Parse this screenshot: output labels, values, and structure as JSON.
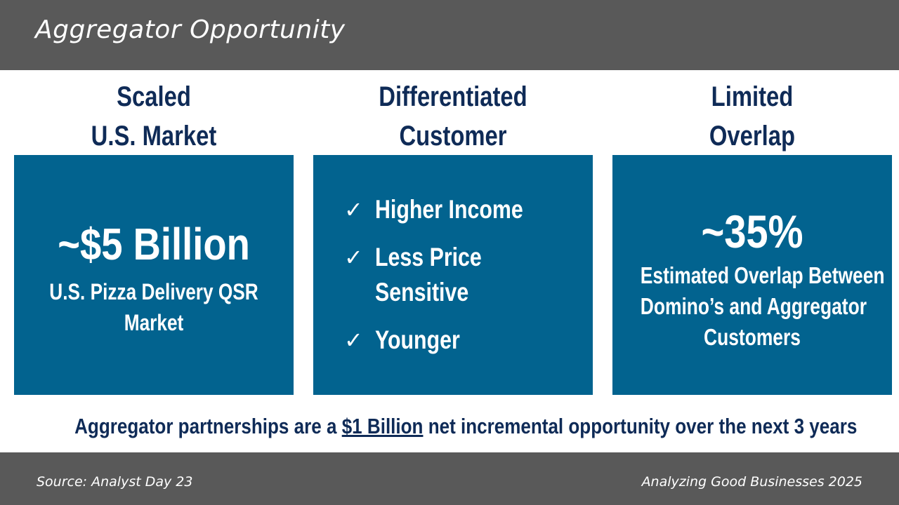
{
  "header": {
    "title": "Aggregator Opportunity"
  },
  "columns": [
    {
      "heading": [
        "Scaled",
        "U.S. Market"
      ],
      "big_value": "~$5 Billion",
      "subtext": [
        "U.S. Pizza Delivery QSR",
        "Market"
      ]
    },
    {
      "heading": [
        "Differentiated",
        "Customer"
      ],
      "items": [
        {
          "lines": [
            "Higher Income"
          ]
        },
        {
          "lines": [
            "Less Price",
            "Sensitive"
          ]
        },
        {
          "lines": [
            "Younger"
          ]
        }
      ],
      "check_glyph": "✓"
    },
    {
      "heading": [
        "Limited",
        "Overlap"
      ],
      "big_value": "~35%",
      "subtext": [
        "Estimated Overlap Between",
        "Domino’s and Aggregator",
        "Customers"
      ]
    }
  ],
  "bottom": {
    "prefix": "Aggregator partnerships are a ",
    "highlight": "$1 Billion",
    "suffix": " net incremental opportunity over the next 3 years"
  },
  "footer": {
    "source": "Source: Analyst Day 23",
    "credit": "Analyzing Good Businesses 2025"
  },
  "colors": {
    "header_bg": "#595959",
    "panel_bg": "#02638f",
    "heading_text": "#0f2b57"
  }
}
